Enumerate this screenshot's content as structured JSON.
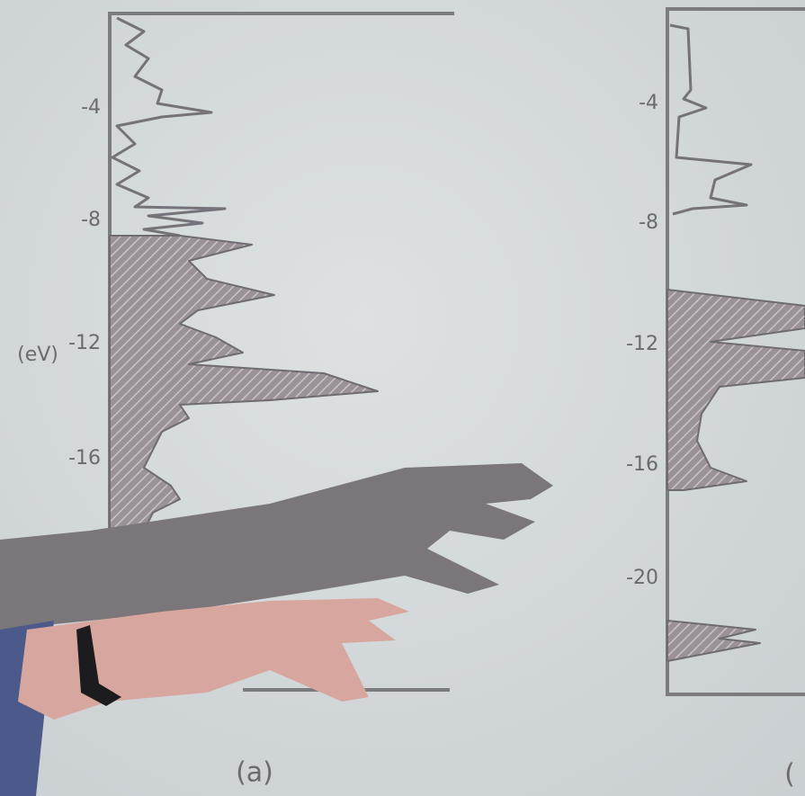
{
  "panels": [
    {
      "yticks": [
        "-4",
        "-8",
        "-12",
        "-16"
      ],
      "axis_label": "(eV)",
      "caption": "(a)"
    },
    {
      "yticks": [
        "-4",
        "-8",
        "-12",
        "-16",
        "-20"
      ],
      "caption": "("
    }
  ]
}
